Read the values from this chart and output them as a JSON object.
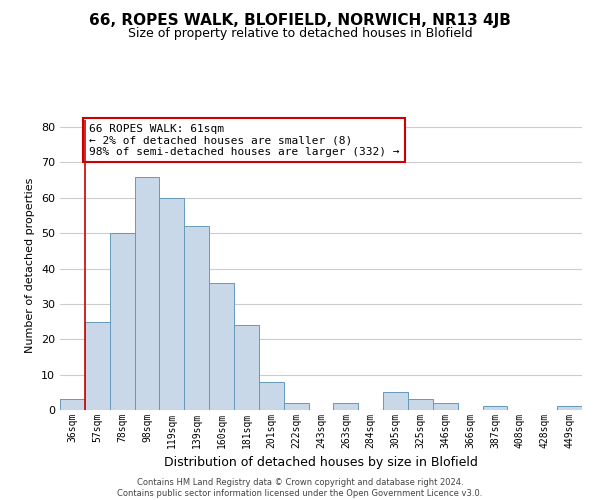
{
  "title": "66, ROPES WALK, BLOFIELD, NORWICH, NR13 4JB",
  "subtitle": "Size of property relative to detached houses in Blofield",
  "xlabel": "Distribution of detached houses by size in Blofield",
  "ylabel": "Number of detached properties",
  "bin_labels": [
    "36sqm",
    "57sqm",
    "78sqm",
    "98sqm",
    "119sqm",
    "139sqm",
    "160sqm",
    "181sqm",
    "201sqm",
    "222sqm",
    "243sqm",
    "263sqm",
    "284sqm",
    "305sqm",
    "325sqm",
    "346sqm",
    "366sqm",
    "387sqm",
    "408sqm",
    "428sqm",
    "449sqm"
  ],
  "bar_heights": [
    3,
    25,
    50,
    66,
    60,
    52,
    36,
    24,
    8,
    2,
    0,
    2,
    0,
    5,
    3,
    2,
    0,
    1,
    0,
    0,
    1
  ],
  "bar_color": "#c8d8e8",
  "bar_edge_color": "#6699bb",
  "highlight_color": "#cc0000",
  "highlight_bin_index": 1,
  "annotation_text": "66 ROPES WALK: 61sqm\n← 2% of detached houses are smaller (8)\n98% of semi-detached houses are larger (332) →",
  "annotation_box_color": "#ffffff",
  "annotation_box_edge_color": "#cc0000",
  "ylim": [
    0,
    82
  ],
  "yticks": [
    0,
    10,
    20,
    30,
    40,
    50,
    60,
    70,
    80
  ],
  "footer_text": "Contains HM Land Registry data © Crown copyright and database right 2024.\nContains public sector information licensed under the Open Government Licence v3.0.",
  "background_color": "#ffffff",
  "grid_color": "#cccccc",
  "title_fontsize": 11,
  "subtitle_fontsize": 9,
  "ylabel_fontsize": 8,
  "xlabel_fontsize": 9,
  "tick_fontsize": 7,
  "annotation_fontsize": 8,
  "footer_fontsize": 6
}
